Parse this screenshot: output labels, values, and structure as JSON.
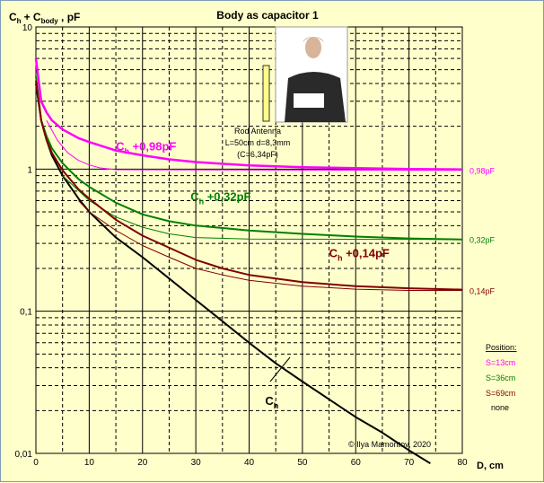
{
  "chart_data": {
    "type": "line",
    "title": "Body  as capacitor 1",
    "ylabel": {
      "main": "C",
      "sub1": "h",
      "plus": "+ C",
      "sub2": "body",
      "unit": " , pF"
    },
    "xlabel": "D, cm",
    "xlim": [
      0,
      80
    ],
    "ylim": [
      0.01,
      10
    ],
    "yscale": "log",
    "grid": true,
    "x_ticks": [
      "0",
      "10",
      "20",
      "30",
      "40",
      "50",
      "60",
      "70",
      "80"
    ],
    "y_ticks": [
      "10",
      "1",
      "0,1",
      "0,01"
    ],
    "series": [
      {
        "name": "Ch",
        "color": "#000000",
        "width": 2,
        "points": [
          [
            0,
            4
          ],
          [
            1,
            2.2
          ],
          [
            2,
            1.6
          ],
          [
            3,
            1.25
          ],
          [
            5,
            0.9
          ],
          [
            8,
            0.62
          ],
          [
            10,
            0.5
          ],
          [
            15,
            0.33
          ],
          [
            20,
            0.24
          ],
          [
            25,
            0.17
          ],
          [
            30,
            0.12
          ],
          [
            35,
            0.085
          ],
          [
            40,
            0.06
          ],
          [
            45,
            0.043
          ],
          [
            50,
            0.032
          ],
          [
            55,
            0.024
          ],
          [
            60,
            0.018
          ],
          [
            65,
            0.014
          ],
          [
            70,
            0.0105
          ],
          [
            74,
            0.0085
          ]
        ]
      },
      {
        "name": "Ch +0,98pF",
        "color": "#ff00ff",
        "width": 2.5,
        "points": [
          [
            0,
            6
          ],
          [
            1,
            3
          ],
          [
            2,
            2.5
          ],
          [
            3,
            2.2
          ],
          [
            5,
            1.9
          ],
          [
            8,
            1.65
          ],
          [
            10,
            1.55
          ],
          [
            15,
            1.35
          ],
          [
            20,
            1.25
          ],
          [
            25,
            1.17
          ],
          [
            30,
            1.12
          ],
          [
            40,
            1.06
          ],
          [
            50,
            1.03
          ],
          [
            60,
            1.015
          ],
          [
            70,
            1.0
          ],
          [
            80,
            0.995
          ]
        ]
      },
      {
        "name": "Ch +0,98pF ideal",
        "color": "#ff00ff",
        "width": 1,
        "points": [
          [
            2,
            2.2
          ],
          [
            4,
            1.6
          ],
          [
            6,
            1.3
          ],
          [
            8,
            1.15
          ],
          [
            10,
            1.07
          ],
          [
            12,
            1.02
          ],
          [
            15,
            0.99
          ],
          [
            80,
            0.98
          ]
        ]
      },
      {
        "name": "Ch +0,32pF",
        "color": "#008000",
        "width": 2,
        "points": [
          [
            0,
            4.5
          ],
          [
            1,
            2.2
          ],
          [
            2,
            1.7
          ],
          [
            3,
            1.4
          ],
          [
            5,
            1.1
          ],
          [
            8,
            0.85
          ],
          [
            10,
            0.75
          ],
          [
            15,
            0.58
          ],
          [
            20,
            0.48
          ],
          [
            25,
            0.43
          ],
          [
            30,
            0.4
          ],
          [
            40,
            0.37
          ],
          [
            50,
            0.35
          ],
          [
            60,
            0.335
          ],
          [
            70,
            0.325
          ],
          [
            80,
            0.32
          ]
        ]
      },
      {
        "name": "Ch +0,32pF ideal",
        "color": "#008000",
        "width": 1,
        "points": [
          [
            5,
            0.9
          ],
          [
            10,
            0.6
          ],
          [
            15,
            0.46
          ],
          [
            20,
            0.39
          ],
          [
            25,
            0.35
          ],
          [
            30,
            0.33
          ],
          [
            40,
            0.322
          ],
          [
            80,
            0.32
          ]
        ]
      },
      {
        "name": "Ch +0,14pF",
        "color": "#800000",
        "width": 2,
        "points": [
          [
            0,
            4.2
          ],
          [
            1,
            2.2
          ],
          [
            2,
            1.6
          ],
          [
            3,
            1.3
          ],
          [
            5,
            0.98
          ],
          [
            8,
            0.72
          ],
          [
            10,
            0.62
          ],
          [
            15,
            0.44
          ],
          [
            20,
            0.34
          ],
          [
            25,
            0.28
          ],
          [
            30,
            0.23
          ],
          [
            35,
            0.2
          ],
          [
            40,
            0.18
          ],
          [
            45,
            0.17
          ],
          [
            50,
            0.16
          ],
          [
            55,
            0.155
          ],
          [
            60,
            0.15
          ],
          [
            70,
            0.145
          ],
          [
            80,
            0.142
          ]
        ]
      },
      {
        "name": "Ch +0,14pF ideal",
        "color": "#800000",
        "width": 1,
        "points": [
          [
            8,
            0.6
          ],
          [
            10,
            0.5
          ],
          [
            15,
            0.37
          ],
          [
            20,
            0.29
          ],
          [
            25,
            0.24
          ],
          [
            30,
            0.2
          ],
          [
            35,
            0.18
          ],
          [
            40,
            0.165
          ],
          [
            50,
            0.15
          ],
          [
            60,
            0.143
          ],
          [
            70,
            0.14
          ],
          [
            80,
            0.14
          ]
        ]
      }
    ],
    "curve_labels": [
      {
        "main": "C",
        "sub": "h",
        "rest": " +0,98pF",
        "color": "#ff00ff",
        "x": 15,
        "y": 1.35
      },
      {
        "main": "C",
        "sub": "h",
        "rest": " +0,32pF",
        "color": "#008000",
        "x": 29,
        "y": 0.6
      },
      {
        "main": "C",
        "sub": "h",
        "rest": " +0,14pF",
        "color": "#800000",
        "x": 55,
        "y": 0.24
      },
      {
        "main": "C",
        "sub": "h",
        "rest": "",
        "color": "#000000",
        "x": 43,
        "y": 0.022
      }
    ],
    "right_labels": [
      {
        "text": "0,98pF",
        "color": "#ff00ff",
        "y": 0.98
      },
      {
        "text": "0,32pF",
        "color": "#008000",
        "y": 0.32
      },
      {
        "text": "0,14pF",
        "color": "#800000",
        "y": 0.14
      }
    ],
    "annotation": {
      "line1": "Rod Antenna",
      "line2": "L=50cm d=8,3mm",
      "line3": "(C=6,34pF)"
    },
    "legend": {
      "title": "Position:",
      "items": [
        {
          "text": "S=13cm",
          "color": "#ff00ff"
        },
        {
          "text": "S=36cm",
          "color": "#008000"
        },
        {
          "text": "S=69cm",
          "color": "#800000"
        },
        {
          "text": "none",
          "color": "#000000"
        }
      ]
    },
    "copyright": "© Ilya Mamontov, 2020"
  }
}
